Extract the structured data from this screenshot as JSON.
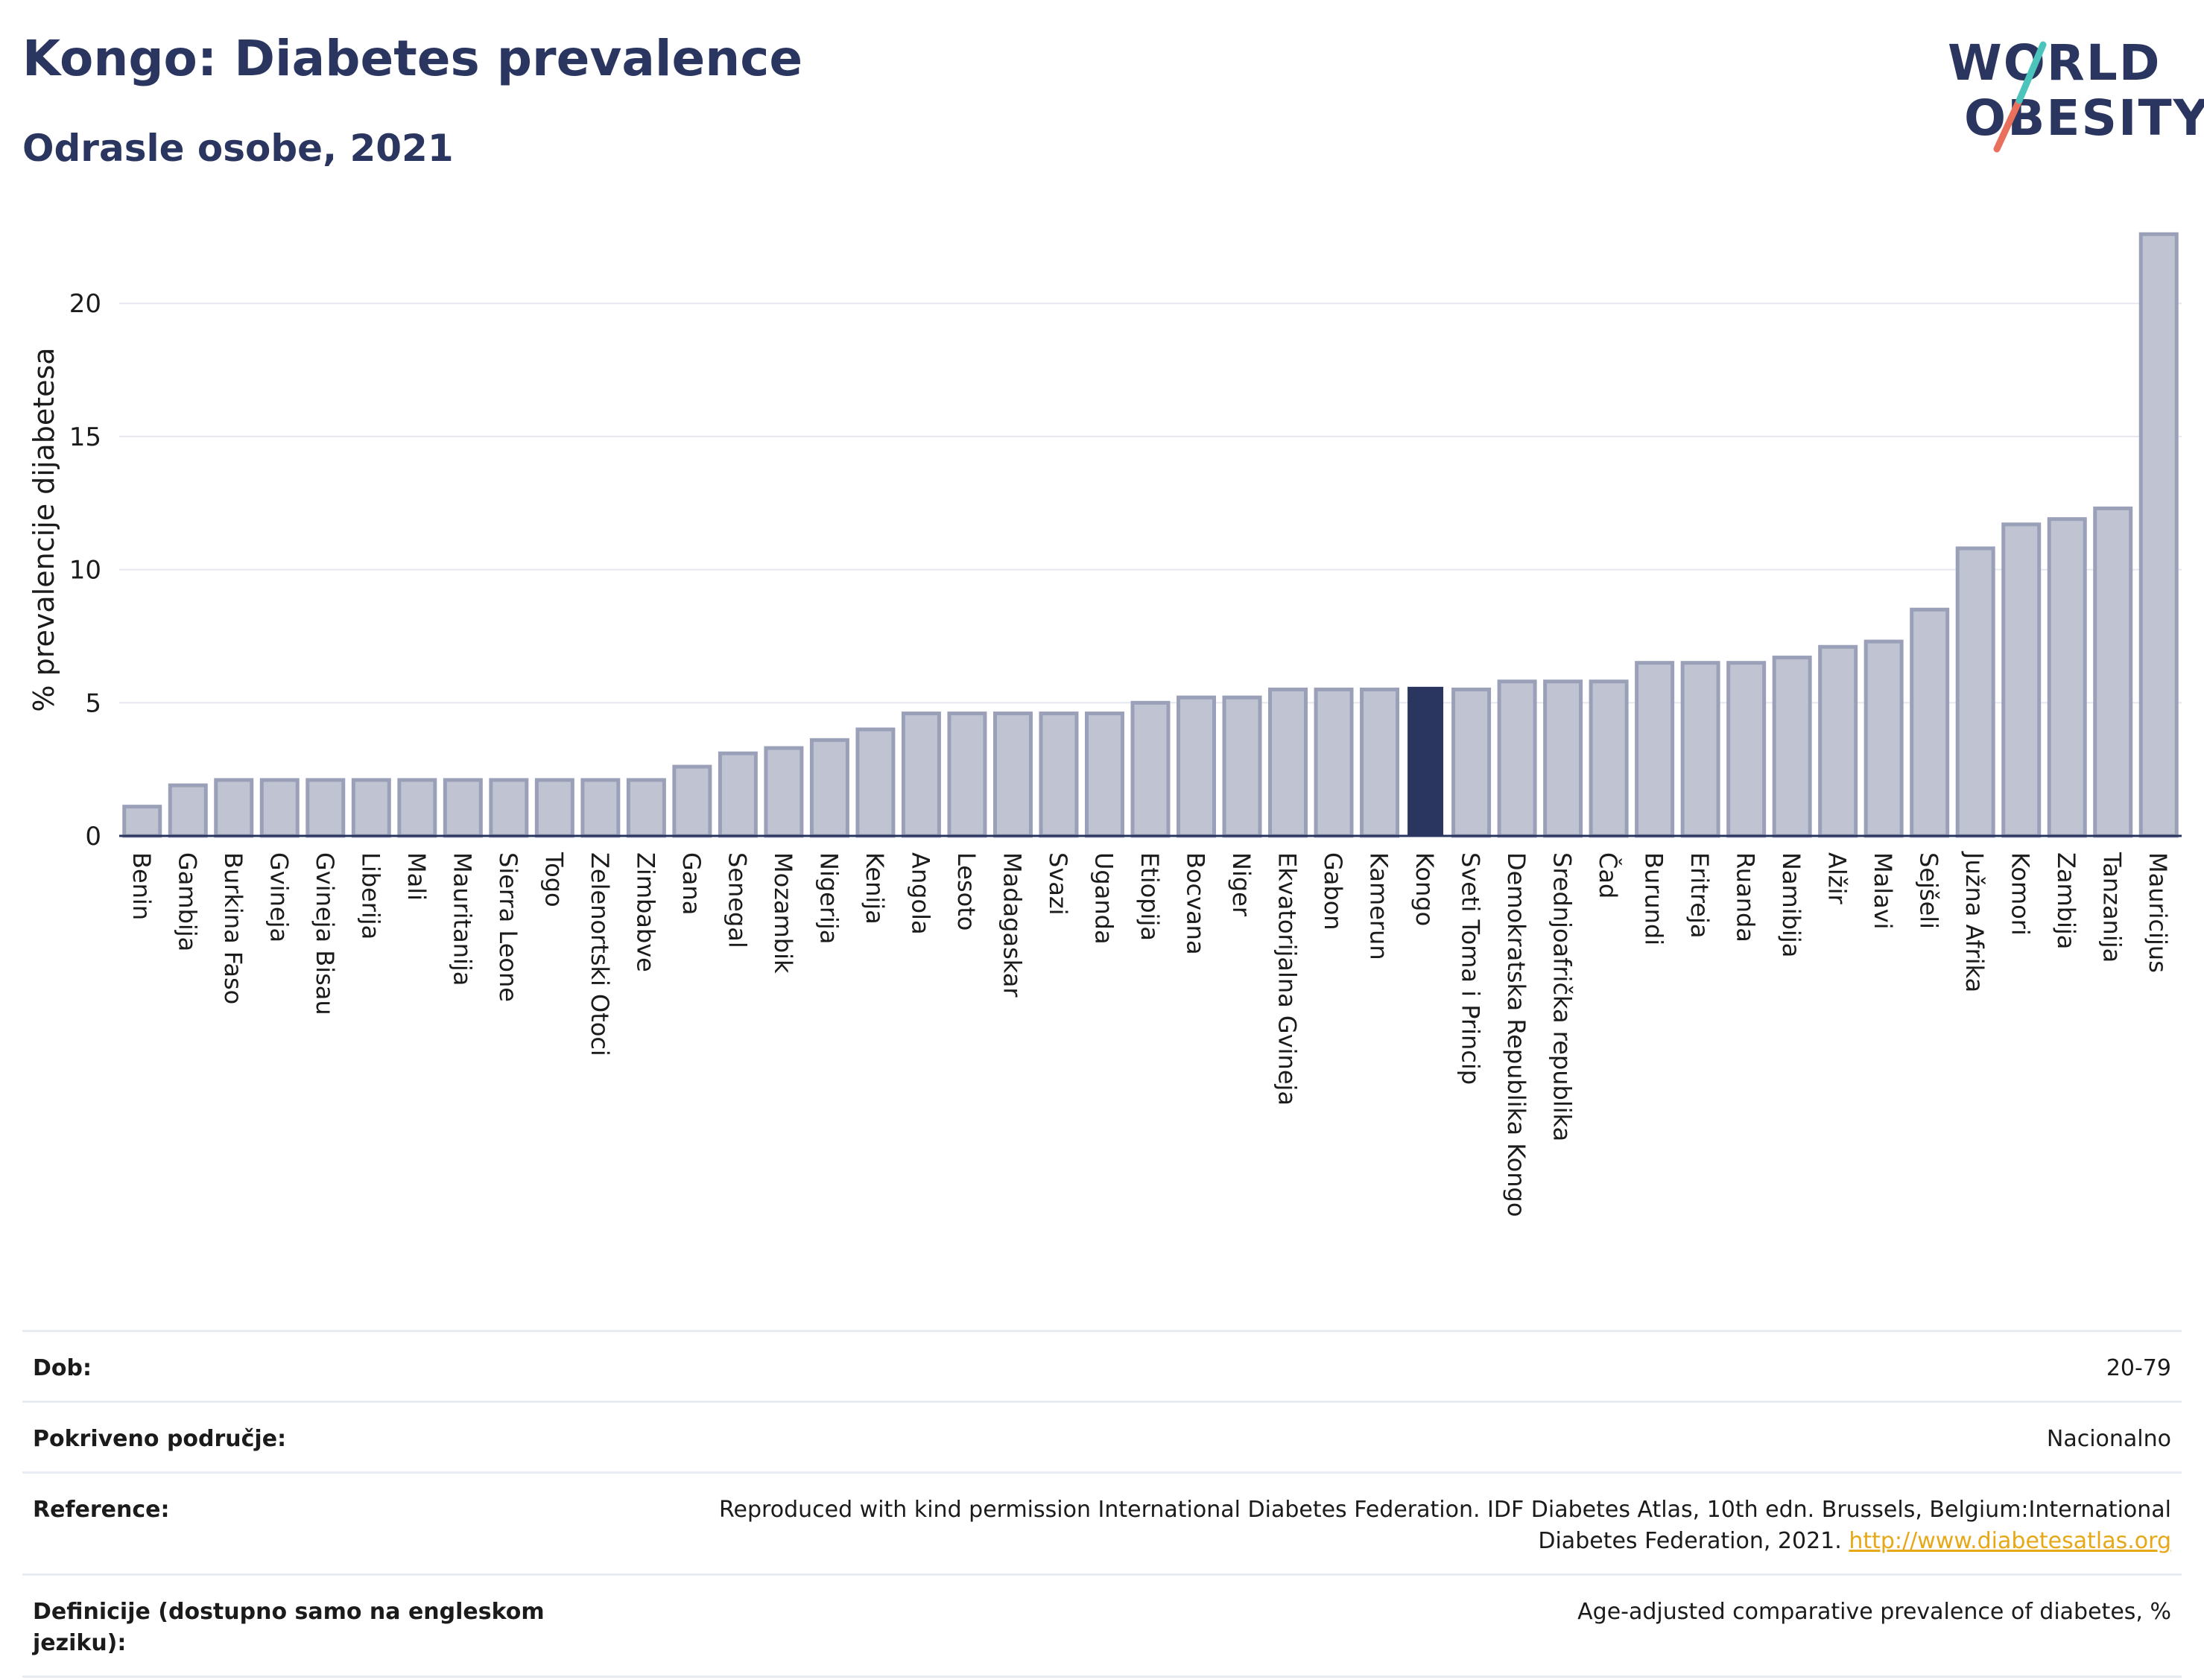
{
  "header": {
    "title": "Kongo: Diabetes prevalence",
    "subtitle": "Odrasle osobe, 2021",
    "logo_line1": "WORLD",
    "logo_line2": "OBESITY"
  },
  "chart_data": {
    "type": "bar",
    "ylabel": "% prevalencije dijabetesa",
    "ylim": [
      0,
      23
    ],
    "yticks": [
      0,
      5,
      10,
      15,
      20
    ],
    "grid": true,
    "highlight": "Kongo",
    "colors": {
      "bar": "#c0c4d2",
      "bar_stroke": "#9aa0b8",
      "highlight": "#2a3660",
      "grid": "#e6e8ef",
      "axis": "#2a3660"
    },
    "categories": [
      "Benin",
      "Gambija",
      "Burkina Faso",
      "Gvineja",
      "Gvineja Bisau",
      "Liberija",
      "Mali",
      "Mauritanija",
      "Sierra Leone",
      "Togo",
      "Zelenortski Otoci",
      "Zimbabve",
      "Gana",
      "Senegal",
      "Mozambik",
      "Nigerija",
      "Kenija",
      "Angola",
      "Lesoto",
      "Madagaskar",
      "Svazi",
      "Uganda",
      "Etiopija",
      "Bocvana",
      "Niger",
      "Ekvatorijalna Gvineja",
      "Gabon",
      "Kamerun",
      "Kongo",
      "Sveti Toma i Princip",
      "Demokratska Republika Kongo",
      "Srednjoafrička republika",
      "Čad",
      "Burundi",
      "Eritreja",
      "Ruanda",
      "Namibija",
      "Alžir",
      "Malavi",
      "Sejšeli",
      "Južna Afrika",
      "Komori",
      "Zambija",
      "Tanzanija",
      "Mauricijus"
    ],
    "values": [
      1.1,
      1.9,
      2.1,
      2.1,
      2.1,
      2.1,
      2.1,
      2.1,
      2.1,
      2.1,
      2.1,
      2.1,
      2.6,
      3.1,
      3.3,
      3.6,
      4.0,
      4.6,
      4.6,
      4.6,
      4.6,
      4.6,
      5.0,
      5.2,
      5.2,
      5.5,
      5.5,
      5.5,
      5.6,
      5.5,
      5.8,
      5.8,
      5.8,
      6.5,
      6.5,
      6.5,
      6.7,
      7.1,
      7.3,
      8.5,
      10.8,
      11.7,
      11.9,
      12.3,
      22.6
    ]
  },
  "meta": {
    "rows": [
      {
        "label": "Dob:",
        "value": "20-79"
      },
      {
        "label": "Pokriveno područje:",
        "value": "Nacionalno"
      },
      {
        "label": "Reference:",
        "value": "Reproduced with kind permission International Diabetes Federation.  IDF Diabetes Atlas, 10th edn. Brussels, Belgium:International Diabetes Federation, 2021.",
        "link": "http://www.diabetesatlas.org"
      },
      {
        "label": "Definicije (dostupno samo na engleskom jeziku):",
        "value": "Age-adjusted comparative prevalence of diabetes, %"
      }
    ]
  }
}
